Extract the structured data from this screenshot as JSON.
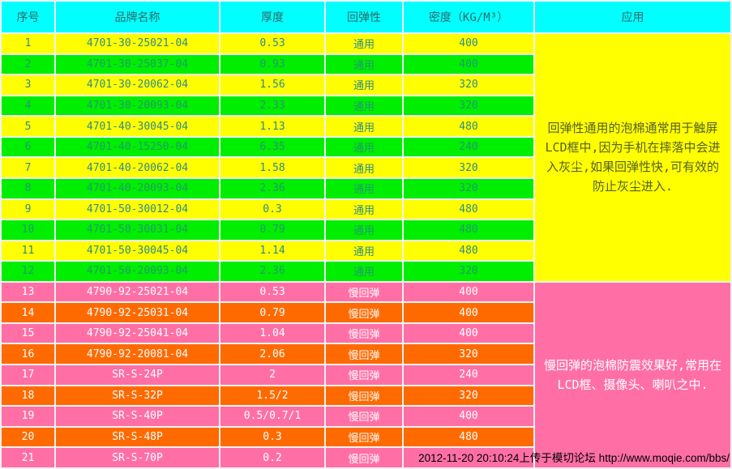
{
  "table": {
    "headers": [
      "序号",
      "品牌名称",
      "厚度",
      "回弹性",
      "密度（KG/M³）",
      "应用"
    ],
    "rows": [
      {
        "no": "1",
        "brand": "4701-30-25021-04",
        "thickness": "0.53",
        "resilience": "通用",
        "density": "400"
      },
      {
        "no": "2",
        "brand": "4701-30-25037-04",
        "thickness": "0.93",
        "resilience": "通用",
        "density": "400"
      },
      {
        "no": "3",
        "brand": "4701-30-20062-04",
        "thickness": "1.56",
        "resilience": "通用",
        "density": "320"
      },
      {
        "no": "4",
        "brand": "4701-30-20093-04",
        "thickness": "2.33",
        "resilience": "通用",
        "density": "320"
      },
      {
        "no": "5",
        "brand": "4701-40-30045-04",
        "thickness": "1.13",
        "resilience": "通用",
        "density": "480"
      },
      {
        "no": "6",
        "brand": "4701-40-15250-04",
        "thickness": "6.35",
        "resilience": "通用",
        "density": "240"
      },
      {
        "no": "7",
        "brand": "4701-40-20062-04",
        "thickness": "1.58",
        "resilience": "通用",
        "density": "320"
      },
      {
        "no": "8",
        "brand": "4701-40-20093-04",
        "thickness": "2.36",
        "resilience": "通用",
        "density": "320"
      },
      {
        "no": "9",
        "brand": "4701-50-30012-04",
        "thickness": "0.3",
        "resilience": "通用",
        "density": "480"
      },
      {
        "no": "10",
        "brand": "4701-50-30031-04",
        "thickness": "0.79",
        "resilience": "通用",
        "density": "480"
      },
      {
        "no": "11",
        "brand": "4701-50-30045-04",
        "thickness": "1.14",
        "resilience": "通用",
        "density": "480"
      },
      {
        "no": "12",
        "brand": "4701-50-20093-04",
        "thickness": "2.36",
        "resilience": "通用",
        "density": "320"
      },
      {
        "no": "13",
        "brand": "4790-92-25021-04",
        "thickness": "0.53",
        "resilience": "慢回弹",
        "density": "400"
      },
      {
        "no": "14",
        "brand": "4790-92-25031-04",
        "thickness": "0.79",
        "resilience": "慢回弹",
        "density": "400"
      },
      {
        "no": "15",
        "brand": "4790-92-25041-04",
        "thickness": "1.04",
        "resilience": "慢回弹",
        "density": "400"
      },
      {
        "no": "16",
        "brand": "4790-92-20081-04",
        "thickness": "2.06",
        "resilience": "慢回弹",
        "density": "320"
      },
      {
        "no": "17",
        "brand": "SR-S-24P",
        "thickness": "2",
        "resilience": "慢回弹",
        "density": "240"
      },
      {
        "no": "18",
        "brand": "SR-S-32P",
        "thickness": "1.5/2",
        "resilience": "慢回弹",
        "density": "320"
      },
      {
        "no": "19",
        "brand": "SR-S-40P",
        "thickness": "0.5/0.7/1",
        "resilience": "慢回弹",
        "density": "400"
      },
      {
        "no": "20",
        "brand": "SR-S-48P",
        "thickness": "0.3",
        "resilience": "慢回弹",
        "density": "480"
      },
      {
        "no": "21",
        "brand": "SR-S-70P",
        "thickness": "0.2",
        "resilience": "慢回弹",
        "density": ""
      }
    ],
    "applications": {
      "general": "回弹性通用的泡棉通常用于触屏LCD框中,因为手机在摔落中会进入灰尘,如果回弹性快,可有效的防止灰尘进入.",
      "slow": "慢回弹的泡棉防震效果好,常用在LCD框、摄像头、喇叭之中."
    }
  },
  "watermark": "2012-11-20 20:10:24上传于模切论坛 http://www.moqie.com/bbs/",
  "colors": {
    "header_bg": "#00ffff",
    "row_yellow": "#ffff00",
    "row_green": "#00ee00",
    "row_pink": "#ff6fa5",
    "row_orange": "#ff6a00",
    "general_text": "#2e8b8b",
    "slow_text": "#ffffff",
    "app_yellow_text": "#556029",
    "watermark_text": "#000000"
  }
}
